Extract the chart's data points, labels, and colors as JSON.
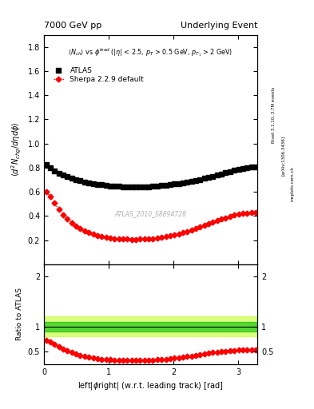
{
  "title_left": "7000 GeV pp",
  "title_right": "Underlying Event",
  "right_label": "Rivet 3.1.10, 3.7M events",
  "arxiv_label": "[arXiv:1306.3436]",
  "mcplots_label": "mcplots.cern.ch",
  "annotation": "ATLAS_2010_S8894728",
  "xlabel": "left|\\u03d5right| (w.r.t. leading track) [rad]",
  "ylabel": "\\u27e8d\\u00b2 N_{chg}/d\\u03b7d\\u03d5\\u27e9",
  "ylabel_ratio": "Ratio to ATLAS",
  "ylim": [
    0.0,
    1.9
  ],
  "xlim": [
    0.0,
    3.3
  ],
  "yticks_main": [
    0.2,
    0.4,
    0.6,
    0.8,
    1.0,
    1.2,
    1.4,
    1.6,
    1.8
  ],
  "ratio_ylim": [
    0.25,
    2.25
  ],
  "ratio_yticks": [
    0.5,
    1.0,
    2.0
  ],
  "xticks": [
    0,
    1,
    2,
    3
  ],
  "atlas_x": [
    0.033,
    0.099,
    0.165,
    0.231,
    0.297,
    0.363,
    0.429,
    0.495,
    0.561,
    0.628,
    0.694,
    0.76,
    0.826,
    0.892,
    0.958,
    1.024,
    1.09,
    1.156,
    1.222,
    1.288,
    1.354,
    1.421,
    1.487,
    1.553,
    1.619,
    1.685,
    1.751,
    1.817,
    1.883,
    1.949,
    2.015,
    2.081,
    2.148,
    2.214,
    2.28,
    2.346,
    2.412,
    2.478,
    2.544,
    2.61,
    2.676,
    2.742,
    2.808,
    2.875,
    2.941,
    3.007,
    3.073,
    3.139,
    3.205,
    3.272
  ],
  "atlas_y": [
    0.825,
    0.8,
    0.775,
    0.755,
    0.74,
    0.725,
    0.71,
    0.7,
    0.69,
    0.682,
    0.675,
    0.669,
    0.663,
    0.658,
    0.654,
    0.65,
    0.647,
    0.645,
    0.643,
    0.642,
    0.641,
    0.641,
    0.641,
    0.642,
    0.643,
    0.645,
    0.648,
    0.651,
    0.655,
    0.659,
    0.664,
    0.669,
    0.675,
    0.681,
    0.688,
    0.695,
    0.702,
    0.71,
    0.718,
    0.727,
    0.737,
    0.747,
    0.757,
    0.768,
    0.778,
    0.787,
    0.794,
    0.8,
    0.804,
    0.807
  ],
  "sherpa_x": [
    0.033,
    0.099,
    0.165,
    0.231,
    0.297,
    0.363,
    0.429,
    0.495,
    0.561,
    0.628,
    0.694,
    0.76,
    0.826,
    0.892,
    0.958,
    1.024,
    1.09,
    1.156,
    1.222,
    1.288,
    1.354,
    1.421,
    1.487,
    1.553,
    1.619,
    1.685,
    1.751,
    1.817,
    1.883,
    1.949,
    2.015,
    2.081,
    2.148,
    2.214,
    2.28,
    2.346,
    2.412,
    2.478,
    2.544,
    2.61,
    2.676,
    2.742,
    2.808,
    2.875,
    2.941,
    3.007,
    3.073,
    3.139,
    3.205,
    3.272
  ],
  "sherpa_y": [
    0.6,
    0.56,
    0.505,
    0.455,
    0.41,
    0.375,
    0.345,
    0.318,
    0.295,
    0.275,
    0.26,
    0.248,
    0.237,
    0.228,
    0.222,
    0.217,
    0.213,
    0.21,
    0.208,
    0.207,
    0.206,
    0.206,
    0.207,
    0.208,
    0.21,
    0.213,
    0.217,
    0.222,
    0.228,
    0.235,
    0.243,
    0.252,
    0.262,
    0.272,
    0.283,
    0.295,
    0.308,
    0.32,
    0.333,
    0.347,
    0.36,
    0.373,
    0.385,
    0.397,
    0.408,
    0.415,
    0.42,
    0.425,
    0.428,
    0.43
  ],
  "atlas_color": "black",
  "sherpa_color": "red",
  "band_color_inner": "#00bb00",
  "band_color_outer": "#bbff00",
  "atlas_marker": "s",
  "sherpa_marker": "D",
  "atlas_markersize": 4.5,
  "sherpa_markersize": 3.5,
  "legend_label_atlas": "ATLAS",
  "legend_label_sherpa": "Sherpa 2.2.9 default"
}
